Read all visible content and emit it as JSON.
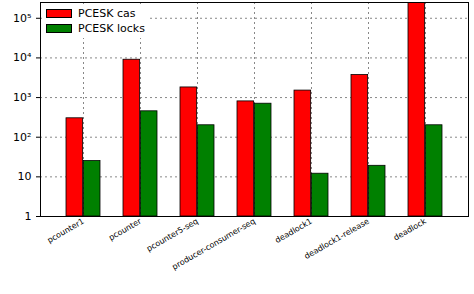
{
  "chart_data": {
    "type": "bar",
    "categories": [
      "pcounter1",
      "pcounter",
      "pcounter5-seq",
      "producer-consumer-seq",
      "deadlock1",
      "deadlock1-release",
      "deadlock"
    ],
    "series": [
      {
        "name": "PCESK cas",
        "color": "#ff0000",
        "values": [
          300,
          9000,
          1800,
          800,
          1500,
          3700,
          250000
        ]
      },
      {
        "name": "PCESK locks",
        "color": "#008000",
        "values": [
          25,
          450,
          200,
          700,
          12,
          19,
          200
        ]
      }
    ],
    "log": "y",
    "ylim": [
      1,
      250000
    ],
    "yticks": [
      1,
      10,
      {
        "value": 100,
        "label": "10²"
      },
      {
        "value": 1000,
        "label": "10³"
      },
      {
        "value": 10000,
        "label": "10⁴"
      },
      {
        "value": 100000,
        "label": "10⁵"
      }
    ],
    "grid": true,
    "legend": "top-left"
  }
}
